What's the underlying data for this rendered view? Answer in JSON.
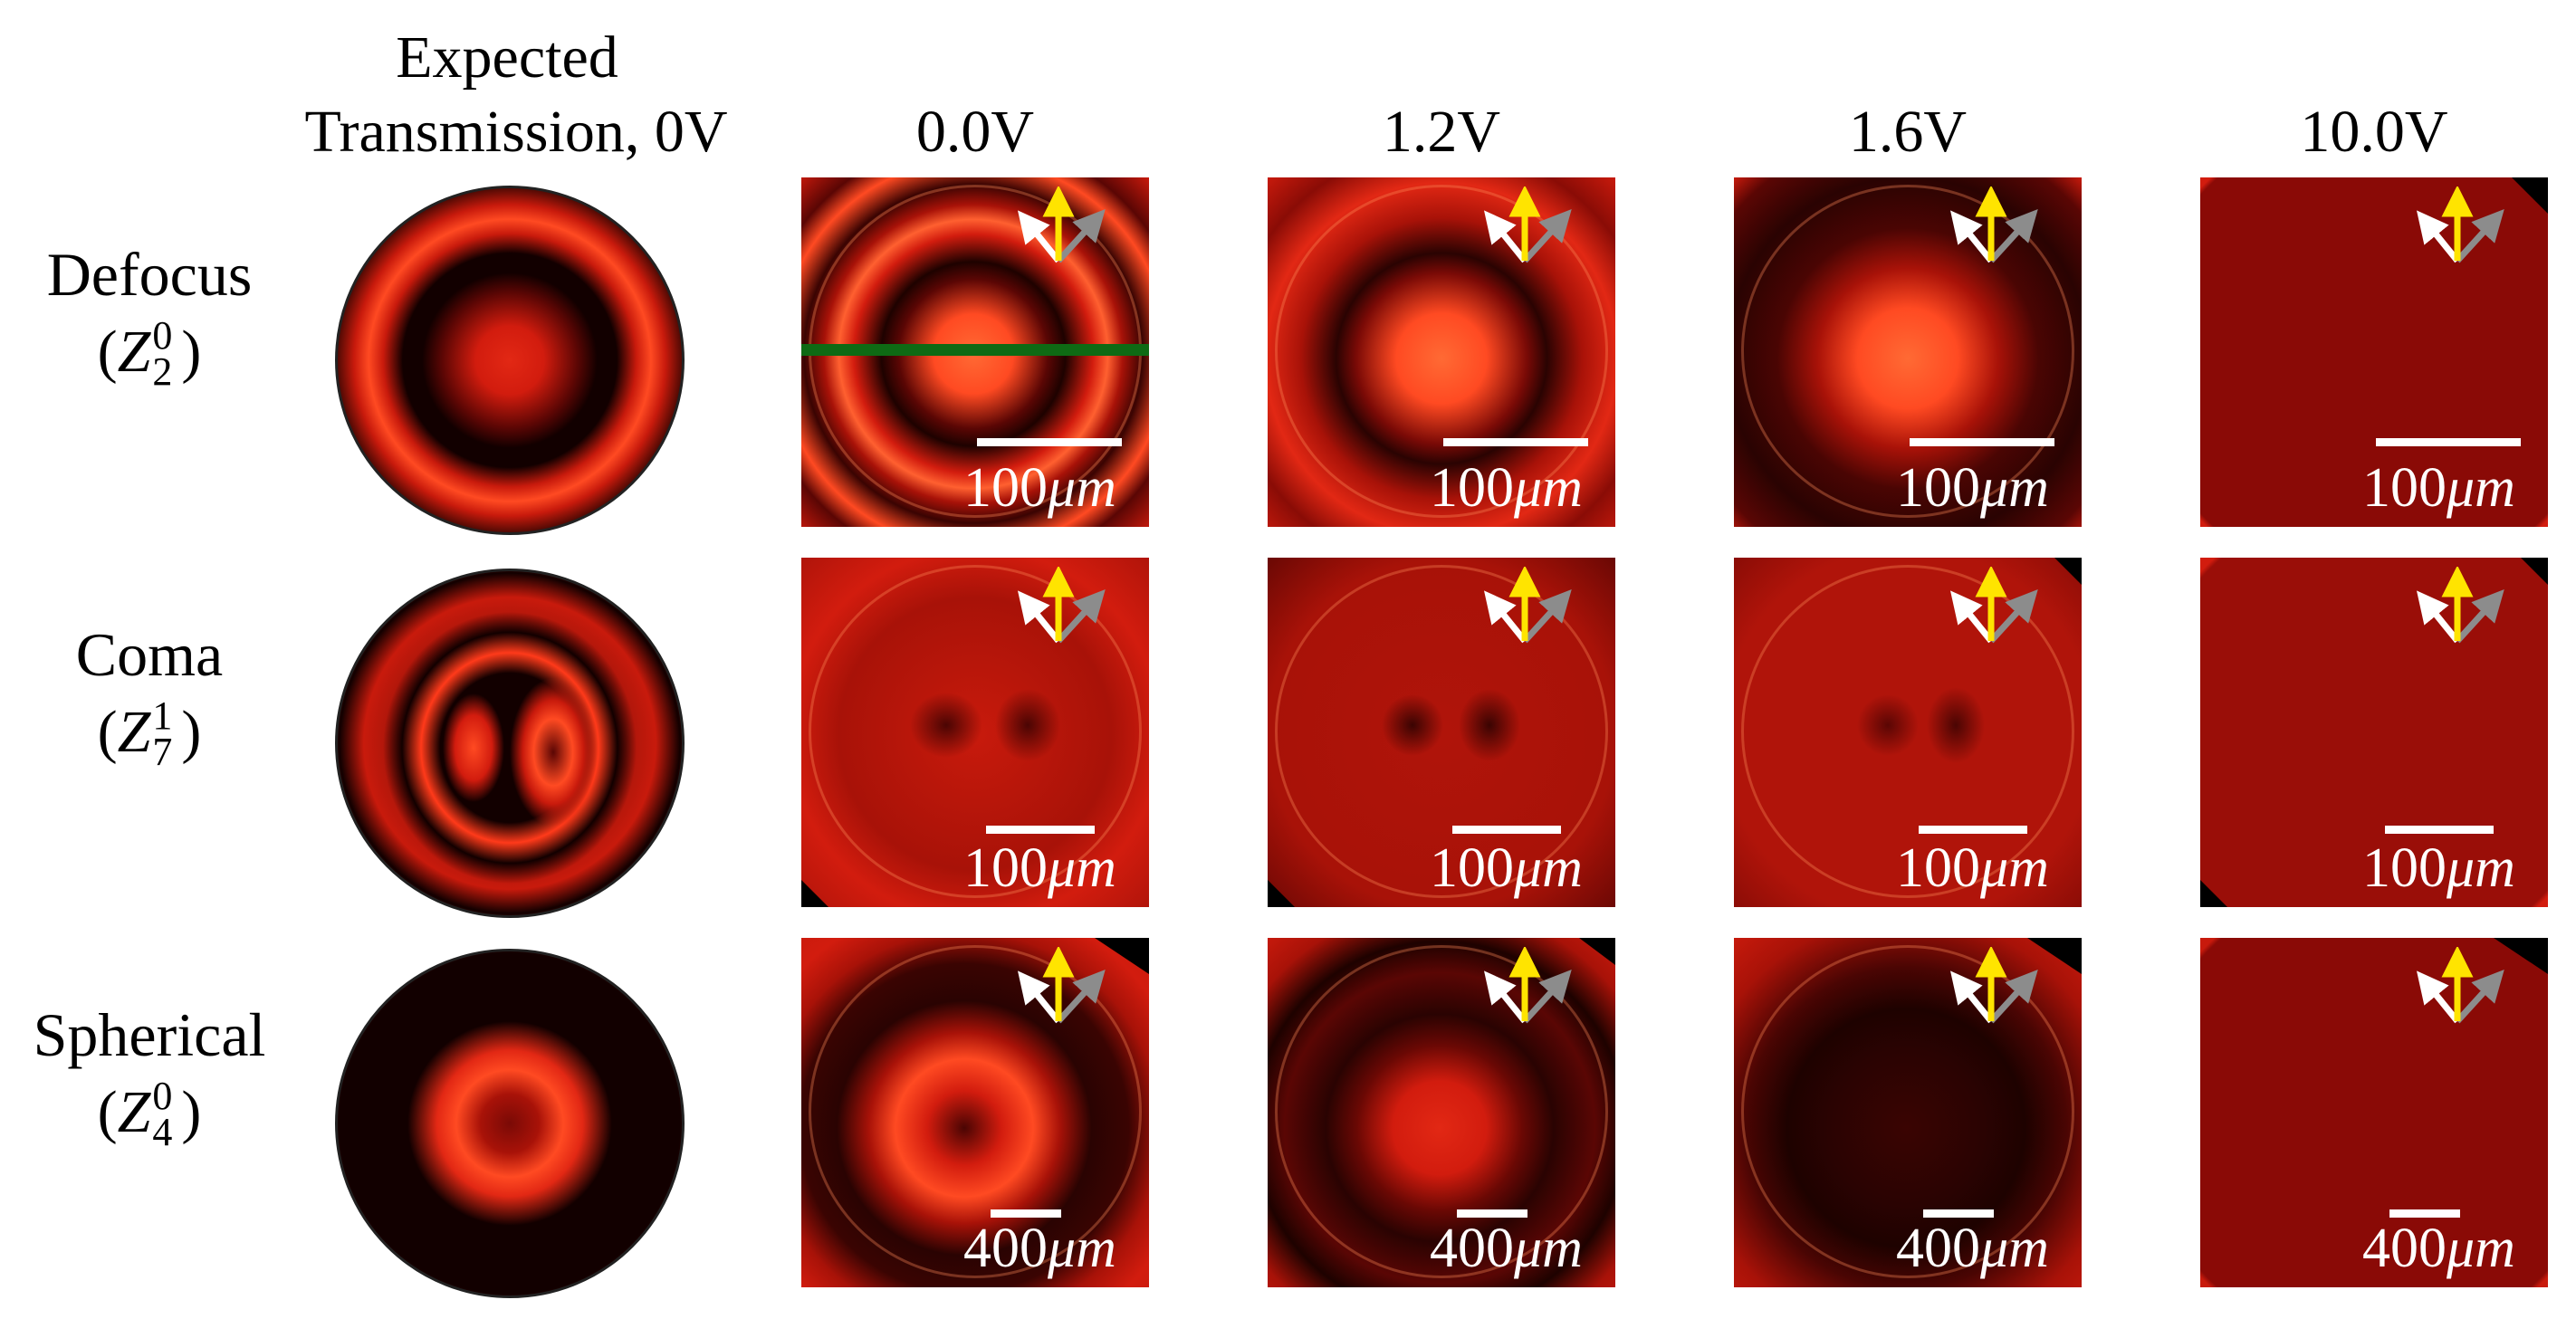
{
  "figure": {
    "expected_header_line1": "Expected",
    "expected_header_line2": "Transmission, 0V",
    "voltage_headers": [
      "0.0V",
      "1.2V",
      "1.6V",
      "10.0V"
    ],
    "rows": [
      {
        "name": "Defocus",
        "sym_open": "(",
        "z": "Z",
        "sup": "0",
        "sub": "2",
        "sym_close": ")"
      },
      {
        "name": "Coma",
        "sym_open": "(",
        "z": "Z",
        "sup": "1",
        "sub": "7",
        "sym_close": ")"
      },
      {
        "name": "Spherical",
        "sym_open": "(",
        "z": "Z",
        "sup": "0",
        "sub": "4",
        "sym_close": ")"
      }
    ],
    "scale_labels": {
      "row1": {
        "num": "100",
        "unit": "μm"
      },
      "row2": {
        "num": "100",
        "unit": "μm"
      },
      "row3": {
        "num": "400",
        "unit": "μm"
      }
    },
    "colors": {
      "panel_red": "#c81a0c",
      "dark_red": "#5a0604",
      "bright": "#ff5a2a",
      "green_line": "#0e6a14",
      "arrow_yellow": "#ffe400",
      "arrow_white": "#ffffff",
      "arrow_gray": "#8c8c8c"
    }
  }
}
